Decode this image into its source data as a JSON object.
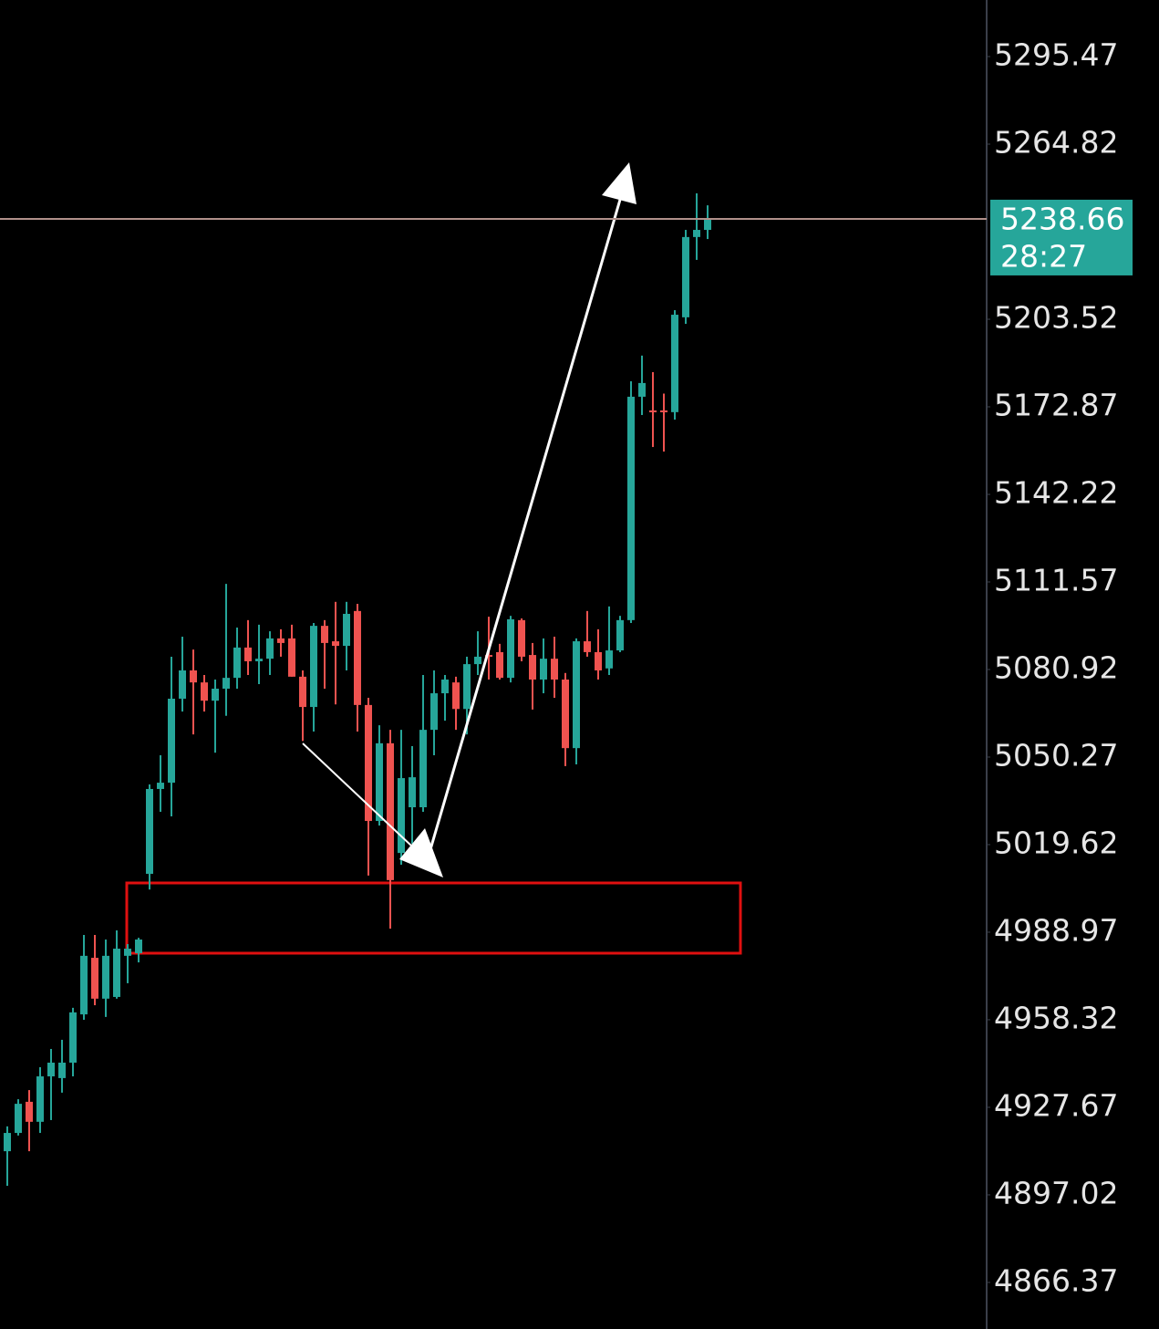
{
  "chart_data": {
    "type": "candlestick",
    "open": [
      4912.3,
      4918.7,
      4929.6,
      4922.6,
      4938.5,
      4937.9,
      4943.3,
      4960.2,
      4980.0,
      4965.7,
      4966.3,
      4980.7,
      4981.6,
      5009.4,
      5039.1,
      5041.3,
      5070.7,
      5080.6,
      5076.4,
      5070.0,
      5074.2,
      5078.0,
      5088.6,
      5083.8,
      5084.7,
      5091.8,
      5091.8,
      5078.4,
      5067.8,
      5096.2,
      5090.8,
      5089.2,
      5101.4,
      5068.5,
      5027.9,
      5055.1,
      5016.7,
      5032.7,
      5032.7,
      5059.8,
      5072.6,
      5076.4,
      5067.1,
      5082.8,
      5086.0,
      5087.0,
      5078.0,
      5098.2,
      5086.0,
      5077.4,
      5084.7,
      5077.4,
      5053.4,
      5090.8,
      5087.0,
      5081.3,
      5087.6,
      5098.2,
      5176.4,
      5171.6,
      5171.6,
      5171.0,
      5204.2,
      5232.3,
      5234.8
    ],
    "high": [
      4921.0,
      4930.5,
      4933.7,
      4941.7,
      4948.1,
      4951.3,
      4962.5,
      4988.0,
      4988.0,
      4986.4,
      4989.6,
      4984.8,
      4987.0,
      5040.7,
      5050.9,
      5085.4,
      5092.4,
      5087.9,
      5079.0,
      5077.4,
      5110.9,
      5095.6,
      5098.2,
      5096.6,
      5094.3,
      5095.0,
      5096.6,
      5080.6,
      5097.2,
      5098.2,
      5104.6,
      5104.6,
      5103.9,
      5071.0,
      5061.4,
      5059.8,
      5059.8,
      5054.1,
      5079.0,
      5080.6,
      5079.0,
      5078.4,
      5085.4,
      5094.3,
      5099.4,
      5089.9,
      5099.7,
      5098.8,
      5090.2,
      5091.8,
      5092.4,
      5079.7,
      5091.8,
      5101.4,
      5095.0,
      5103.0,
      5099.7,
      5181.8,
      5190.8,
      5185.0,
      5177.5,
      5206.7,
      5234.8,
      5247.6,
      5243.4
    ],
    "low": [
      4900.2,
      4917.8,
      4912.3,
      4918.7,
      4923.2,
      4932.8,
      4938.5,
      4958.3,
      4963.4,
      4959.3,
      4965.7,
      4971.1,
      4978.4,
      5003.9,
      5031.1,
      5029.5,
      5066.2,
      5058.2,
      5066.2,
      5051.8,
      5064.7,
      5074.2,
      5079.0,
      5075.8,
      5079.0,
      5085.4,
      5078.4,
      5055.9,
      5059.2,
      5074.2,
      5068.7,
      5080.6,
      5059.2,
      5008.8,
      5026.3,
      4990.2,
      5012.6,
      5019.9,
      5031.1,
      5050.9,
      5063.0,
      5059.8,
      5058.2,
      5079.0,
      5077.4,
      5077.4,
      5076.4,
      5083.8,
      5066.9,
      5072.6,
      5071.0,
      5047.1,
      5047.7,
      5085.4,
      5077.4,
      5079.0,
      5087.0,
      5097.2,
      5170.0,
      5158.8,
      5157.2,
      5168.4,
      5201.9,
      5224.3,
      5231.6
    ],
    "close": [
      4918.7,
      4928.9,
      4922.6,
      4938.5,
      4943.3,
      4943.3,
      4960.9,
      4980.7,
      4965.7,
      4980.7,
      4983.2,
      4983.2,
      4986.4,
      5039.1,
      5041.3,
      5070.7,
      5080.6,
      5076.4,
      5070.0,
      5074.2,
      5078.0,
      5088.6,
      5083.8,
      5084.7,
      5091.8,
      5090.2,
      5078.4,
      5067.8,
      5096.2,
      5090.2,
      5089.2,
      5100.4,
      5068.5,
      5027.9,
      5055.1,
      5007.2,
      5042.9,
      5043.2,
      5059.8,
      5072.6,
      5077.4,
      5067.1,
      5082.8,
      5085.4,
      5085.4,
      5078.0,
      5098.5,
      5085.4,
      5077.4,
      5084.7,
      5077.4,
      5053.4,
      5090.8,
      5087.0,
      5080.6,
      5087.6,
      5098.2,
      5176.4,
      5181.2,
      5171.0,
      5171.0,
      5205.1,
      5232.3,
      5234.8,
      5238.66
    ],
    "up_color": "#26a69a",
    "down_color": "#ef5350",
    "ylim": [
      4850.07,
      5315.27
    ],
    "yticks": [
      5295.47,
      5264.82,
      5203.52,
      5172.87,
      5142.22,
      5111.57,
      5080.92,
      5050.27,
      5019.62,
      4988.97,
      4958.32,
      4927.67,
      4897.02,
      4866.37
    ],
    "current_price": 5238.66,
    "countdown": "28:27"
  }
}
